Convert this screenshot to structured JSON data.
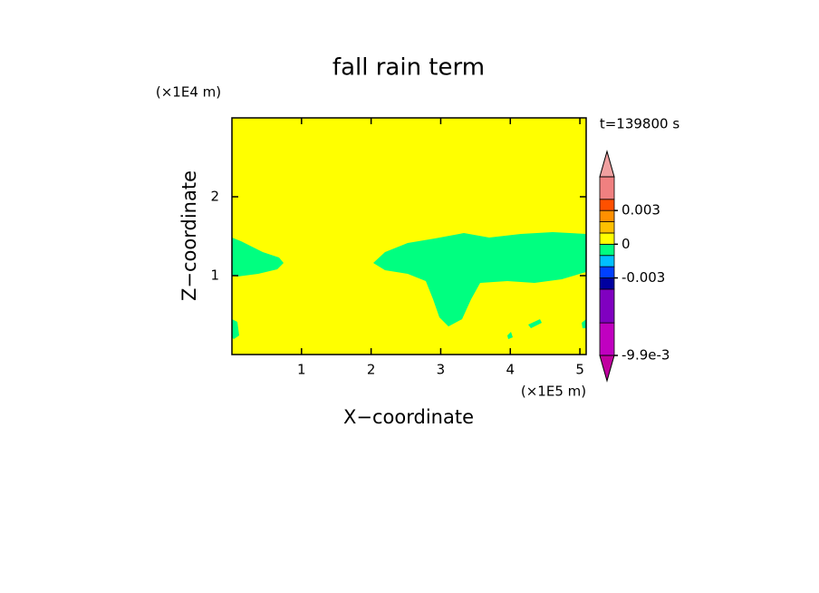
{
  "chart_data": {
    "type": "contour",
    "title": "fall rain term",
    "subtitle": "t=139800 s",
    "xlabel": "X−coordinate",
    "ylabel": "Z−coordinate",
    "xunit": "(×1E5 m)",
    "yunit": "(×1E4 m)",
    "xlim": [
      0,
      5.09
    ],
    "xticks": [
      1,
      2,
      3,
      4,
      5
    ],
    "ylim": [
      0,
      3
    ],
    "yticks": [
      1,
      2
    ],
    "levels": [
      -0.0099,
      -0.007,
      -0.004,
      -0.003,
      -0.002,
      -0.001,
      0,
      0.001,
      0.002,
      0.003,
      0.004,
      0.006
    ],
    "colors": [
      "#c000c0",
      "#8000c0",
      "#0000a0",
      "#0040ff",
      "#00c0ff",
      "#00ff80",
      "#ffff00",
      "#ffc000",
      "#ff9000",
      "#ff5000",
      "#f08080"
    ],
    "extend_colors": [
      "#c000a0",
      "#f0a0a0"
    ],
    "colorbar_ticks": [
      {
        "value": -0.0099,
        "label": "-9.9e-3"
      },
      -0.003,
      0,
      0.003
    ]
  }
}
